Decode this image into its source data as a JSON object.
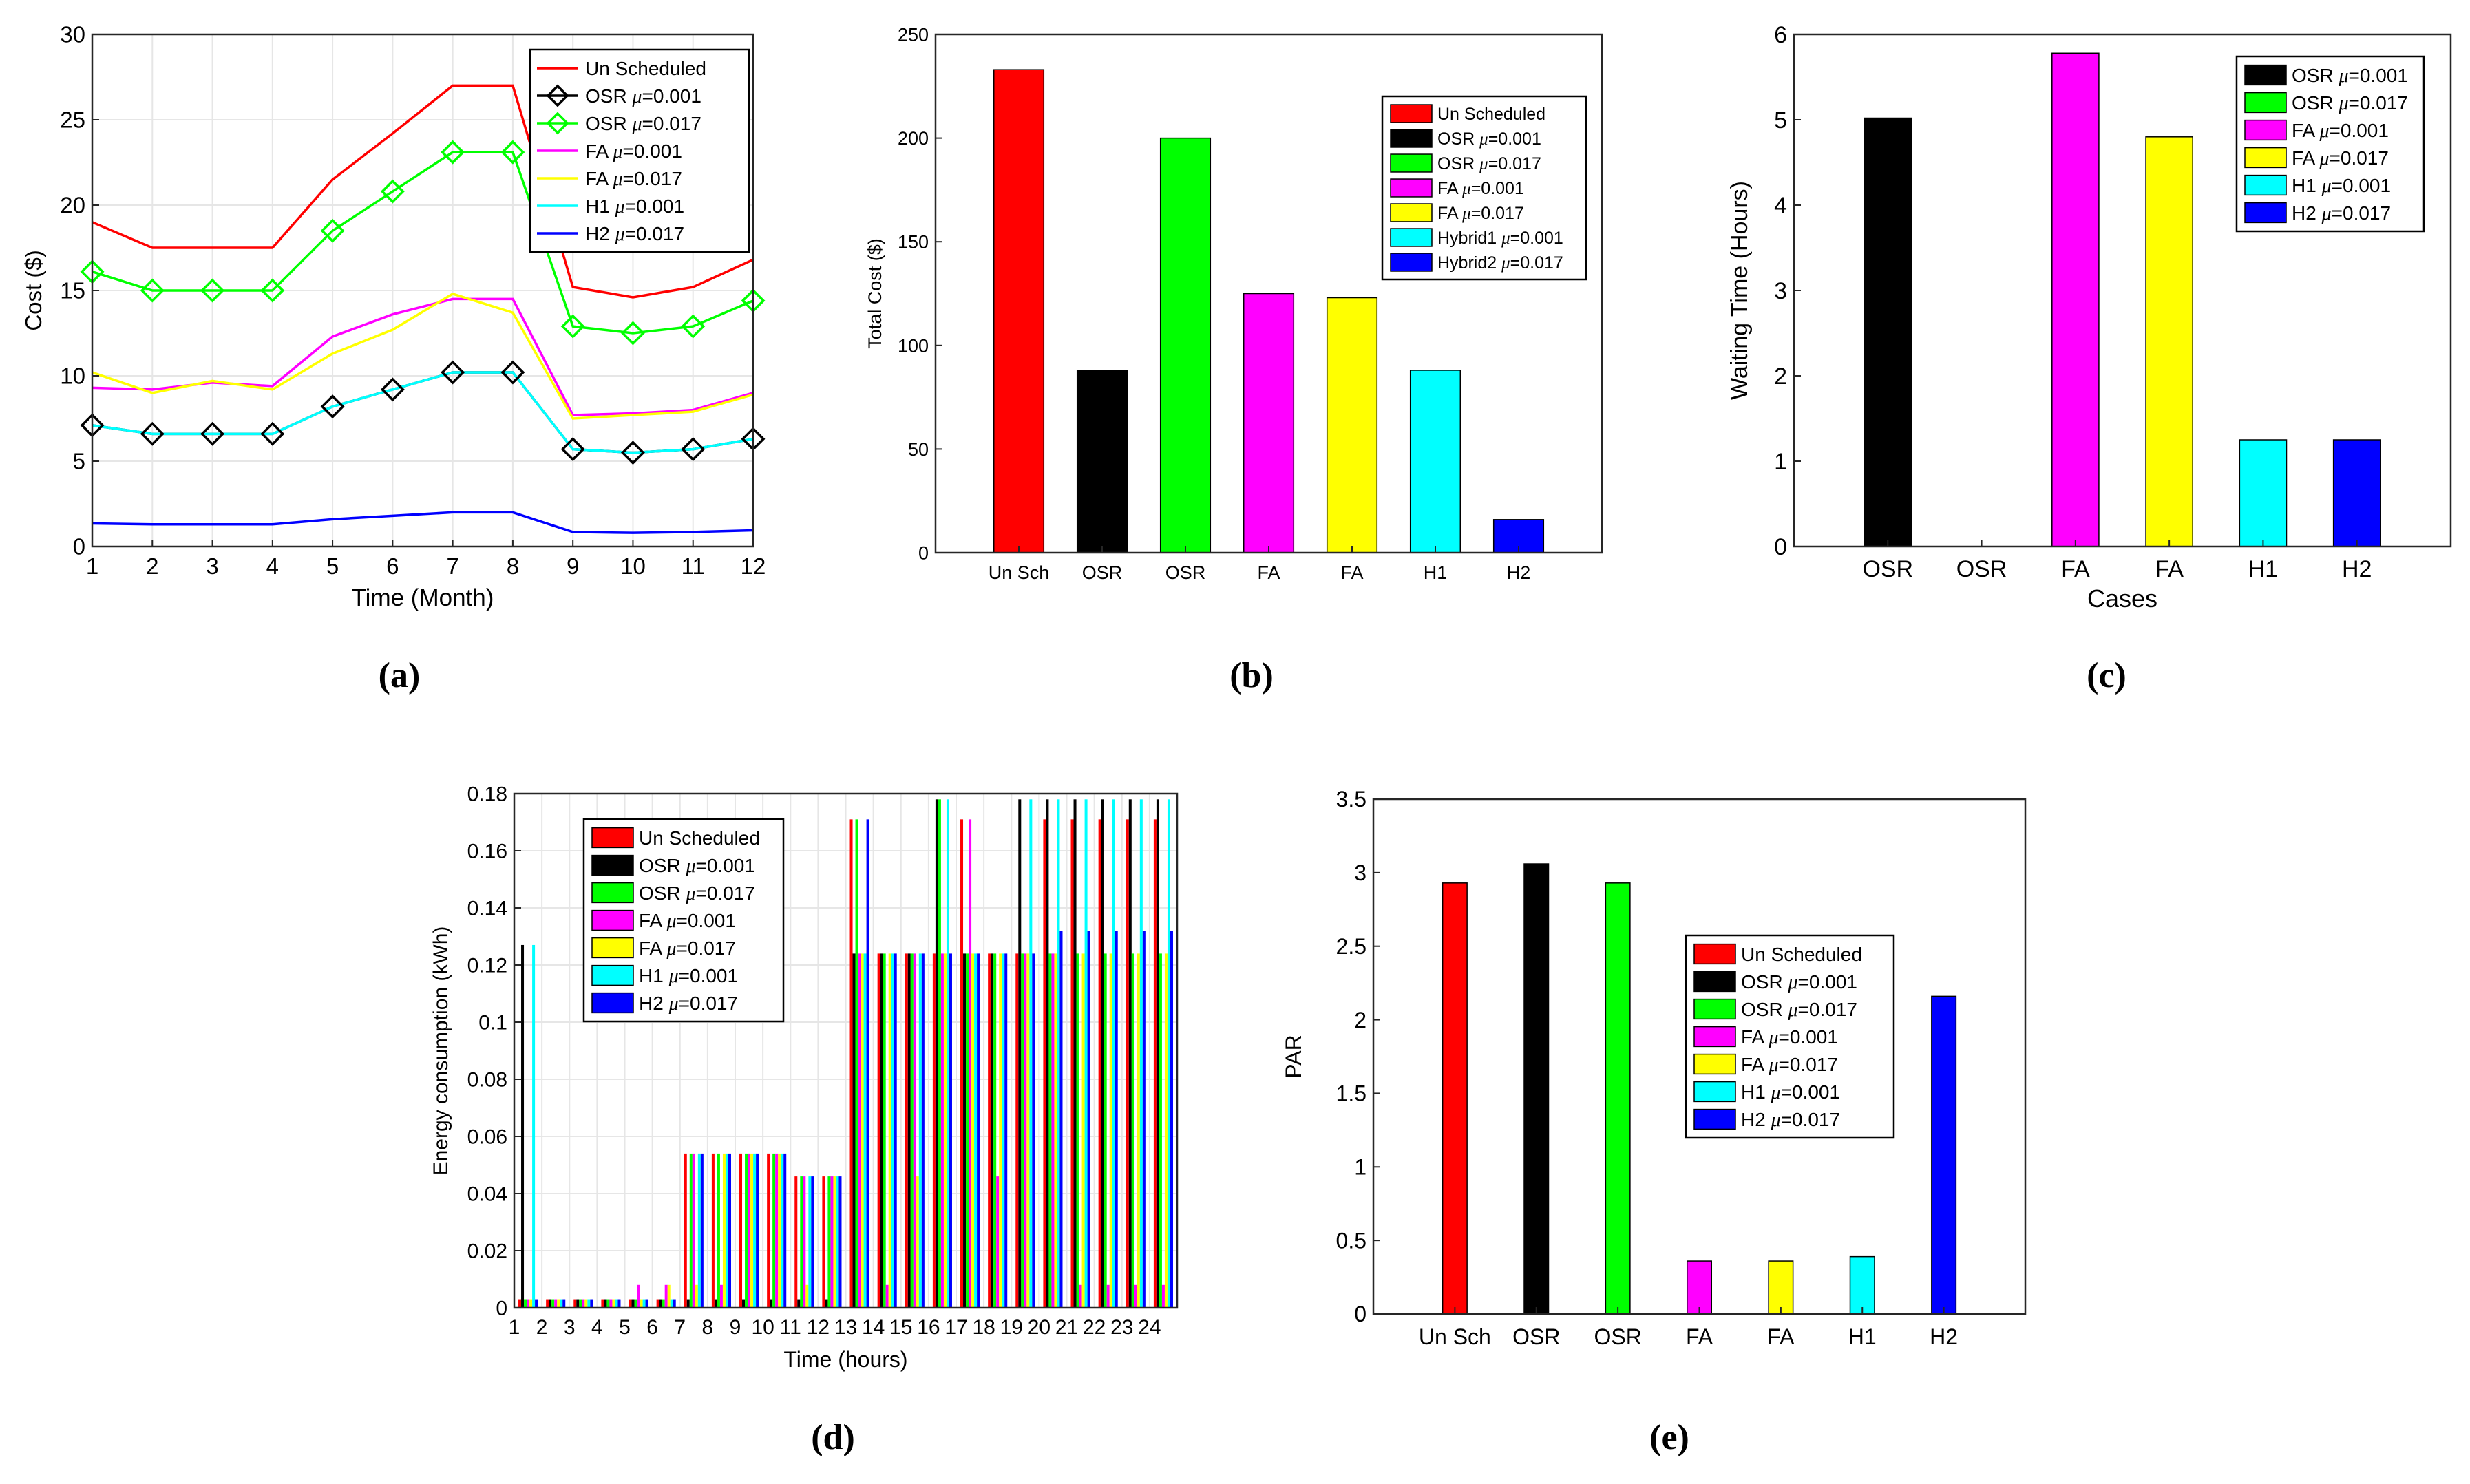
{
  "colors": {
    "red": "#ff0000",
    "black": "#000000",
    "green": "#00ff00",
    "magenta": "#ff00ff",
    "yellow": "#ffff00",
    "cyan": "#00ffff",
    "blue": "#0000ff",
    "grid": "#e6e6e6"
  },
  "chart_data": [
    {
      "id": "a",
      "type": "line",
      "panel_label": "(a)",
      "xlabel": "Time (Month)",
      "ylabel": "Cost ($)",
      "xlim": [
        1,
        12
      ],
      "ylim": [
        0,
        30
      ],
      "xticks": [
        1,
        2,
        3,
        4,
        5,
        6,
        7,
        8,
        9,
        10,
        11,
        12
      ],
      "yticks": [
        0,
        5,
        10,
        15,
        20,
        25,
        30
      ],
      "grid": true,
      "legend_position": "top-right",
      "series": [
        {
          "name": "Un Scheduled",
          "color": "#ff0000",
          "marker": "none",
          "legend": [
            "Un Scheduled"
          ],
          "values": [
            19,
            17.5,
            17.5,
            17.5,
            21.5,
            24.2,
            27,
            27,
            15.2,
            14.6,
            15.2,
            16.8
          ]
        },
        {
          "name": "OSR μ=0.001",
          "color": "#000000",
          "marker": "diamond",
          "legend": [
            "OSR ",
            "μ",
            "=0.001"
          ],
          "values": [
            7.1,
            6.6,
            6.6,
            6.6,
            8.2,
            9.2,
            10.2,
            10.2,
            5.7,
            5.5,
            5.7,
            6.3
          ]
        },
        {
          "name": "OSR μ=0.017",
          "color": "#00ff00",
          "marker": "diamond",
          "legend": [
            "OSR ",
            "μ",
            "=0.017"
          ],
          "values": [
            16.1,
            15.0,
            15.0,
            15.0,
            18.5,
            20.8,
            23.1,
            23.1,
            12.9,
            12.5,
            12.9,
            14.4
          ]
        },
        {
          "name": "FA μ=0.001",
          "color": "#ff00ff",
          "marker": "none",
          "legend": [
            "FA ",
            "μ",
            "=0.001"
          ],
          "values": [
            9.3,
            9.2,
            9.6,
            9.4,
            12.3,
            13.6,
            14.5,
            14.5,
            7.7,
            7.8,
            8.0,
            9.0
          ]
        },
        {
          "name": "FA μ=0.017",
          "color": "#ffff00",
          "marker": "none",
          "legend": [
            "FA ",
            "μ",
            "=0.017"
          ],
          "values": [
            10.2,
            9.0,
            9.7,
            9.2,
            11.3,
            12.7,
            14.8,
            13.7,
            7.5,
            7.7,
            7.9,
            8.9
          ]
        },
        {
          "name": "H1 μ=0.001",
          "color": "#00ffff",
          "marker": "none",
          "legend": [
            "H1 ",
            "μ",
            "=0.001"
          ],
          "values": [
            7.1,
            6.6,
            6.6,
            6.6,
            8.2,
            9.2,
            10.2,
            10.2,
            5.7,
            5.5,
            5.7,
            6.3
          ]
        },
        {
          "name": "H2 μ=0.017",
          "color": "#0000ff",
          "marker": "none",
          "legend": [
            "H2 ",
            "μ",
            "=0.017"
          ],
          "values": [
            1.35,
            1.3,
            1.3,
            1.3,
            1.6,
            1.8,
            2.0,
            2.0,
            0.85,
            0.8,
            0.85,
            0.95
          ]
        }
      ]
    },
    {
      "id": "b",
      "type": "bar",
      "panel_label": "(b)",
      "xlabel": "",
      "ylabel": "Total Cost ($)",
      "ylim": [
        0,
        250
      ],
      "yticks": [
        0,
        50,
        100,
        150,
        200,
        250
      ],
      "grid": false,
      "legend_position": "top-right",
      "categories": [
        "Un Sch",
        "OSR",
        "OSR",
        "FA",
        "FA",
        "H1",
        "H2"
      ],
      "values": [
        233,
        88,
        200,
        125,
        123,
        88,
        16
      ],
      "colors": [
        "#ff0000",
        "#000000",
        "#00ff00",
        "#ff00ff",
        "#ffff00",
        "#00ffff",
        "#0000ff"
      ],
      "legend": [
        [
          "Un Scheduled"
        ],
        [
          "OSR ",
          "μ",
          "=0.001"
        ],
        [
          "OSR ",
          "μ",
          "=0.017"
        ],
        [
          "FA ",
          "μ",
          "=0.001"
        ],
        [
          "FA ",
          "μ",
          "=0.017"
        ],
        [
          "Hybrid1 ",
          "μ",
          "=0.001"
        ],
        [
          "Hybrid2 ",
          "μ",
          "=0.017"
        ]
      ]
    },
    {
      "id": "c",
      "type": "bar",
      "panel_label": "(c)",
      "xlabel": "Cases",
      "ylabel": "Waiting Time (Hours)",
      "ylim": [
        0,
        6
      ],
      "yticks": [
        0,
        1,
        2,
        3,
        4,
        5,
        6
      ],
      "grid": false,
      "legend_position": "top-right",
      "categories": [
        "OSR",
        "OSR",
        "FA",
        "FA",
        "H1",
        "H2"
      ],
      "values": [
        5.02,
        0,
        5.78,
        4.8,
        1.25,
        1.25
      ],
      "colors": [
        "#000000",
        "#00ff00",
        "#ff00ff",
        "#ffff00",
        "#00ffff",
        "#0000ff"
      ],
      "legend": [
        [
          "OSR ",
          "μ",
          "=0.001"
        ],
        [
          "OSR ",
          "μ",
          "=0.017"
        ],
        [
          "FA ",
          "μ",
          "=0.001"
        ],
        [
          "FA ",
          "μ",
          "=0.017"
        ],
        [
          "H1 ",
          "μ",
          "=0.001"
        ],
        [
          "H2 ",
          "μ",
          "=0.017"
        ]
      ]
    },
    {
      "id": "d",
      "type": "bar",
      "panel_label": "(d)",
      "xlabel": "Time (hours)",
      "ylabel": "Energy consumption (kWh)",
      "ylim": [
        0,
        0.18
      ],
      "yticks": [
        0,
        0.02,
        0.04,
        0.06,
        0.08,
        0.1,
        0.12,
        0.14,
        0.16,
        0.18
      ],
      "ytick_labels": [
        "0",
        "0.02",
        "0.04",
        "0.06",
        "0.08",
        "0.1",
        "0.12",
        "0.14",
        "0.16",
        "0.18"
      ],
      "grid": true,
      "legend_position": "top-left",
      "categories": [
        "1",
        "2",
        "3",
        "4",
        "5",
        "6",
        "7",
        "8",
        "9",
        "10",
        "11",
        "12",
        "13",
        "14",
        "15",
        "16",
        "17",
        "18",
        "19",
        "20",
        "21",
        "22",
        "23",
        "24"
      ],
      "series": [
        {
          "name": "Un Scheduled",
          "color": "#ff0000",
          "legend": [
            "Un Scheduled"
          ],
          "values": [
            0.003,
            0.003,
            0.003,
            0.003,
            0.003,
            0.003,
            0.054,
            0.054,
            0.054,
            0.054,
            0.046,
            0.046,
            0.171,
            0.124,
            0.124,
            0.124,
            0.171,
            0.124,
            0.124,
            0.171,
            0.171,
            0.171,
            0.171,
            0.171
          ]
        },
        {
          "name": "OSR μ=0.001",
          "color": "#000000",
          "legend": [
            "OSR ",
            "μ",
            "=0.001"
          ],
          "values": [
            0.127,
            0.003,
            0.003,
            0.003,
            0.003,
            0.003,
            0.003,
            0.003,
            0.003,
            0.003,
            0.003,
            0.003,
            0.124,
            0.124,
            0.124,
            0.178,
            0.124,
            0.124,
            0.178,
            0.178,
            0.178,
            0.178,
            0.178,
            0.178
          ]
        },
        {
          "name": "OSR μ=0.017",
          "color": "#00ff00",
          "legend": [
            "OSR ",
            "μ",
            "=0.017"
          ],
          "values": [
            0.003,
            0.003,
            0.003,
            0.003,
            0.003,
            0.003,
            0.054,
            0.054,
            0.054,
            0.054,
            0.046,
            0.046,
            0.171,
            0.124,
            0.124,
            0.178,
            0.124,
            0.124,
            0.124,
            0.124,
            0.124,
            0.124,
            0.124,
            0.124
          ]
        },
        {
          "name": "FA μ=0.001",
          "color": "#ff00ff",
          "legend": [
            "FA ",
            "μ",
            "=0.001"
          ],
          "values": [
            0.003,
            0.003,
            0.003,
            0.003,
            0.008,
            0.008,
            0.054,
            0.008,
            0.054,
            0.054,
            0.046,
            0.046,
            0.124,
            0.008,
            0.124,
            0.124,
            0.171,
            0.046,
            0.124,
            0.124,
            0.008,
            0.008,
            0.008,
            0.008
          ]
        },
        {
          "name": "FA μ=0.017",
          "color": "#ffff00",
          "legend": [
            "FA ",
            "μ",
            "=0.017"
          ],
          "values": [
            0.003,
            0.003,
            0.003,
            0.003,
            0.003,
            0.008,
            0.008,
            0.054,
            0.054,
            0.054,
            0.008,
            0.046,
            0.124,
            0.124,
            0.046,
            0.124,
            0.124,
            0.124,
            0.124,
            0.124,
            0.124,
            0.124,
            0.124,
            0.124
          ]
        },
        {
          "name": "H1 μ=0.001",
          "color": "#00ffff",
          "legend": [
            "H1 ",
            "μ",
            "=0.001"
          ],
          "values": [
            0.127,
            0.003,
            0.003,
            0.003,
            0.003,
            0.003,
            0.054,
            0.054,
            0.054,
            0.054,
            0.046,
            0.046,
            0.124,
            0.124,
            0.124,
            0.178,
            0.124,
            0.124,
            0.178,
            0.178,
            0.178,
            0.178,
            0.178,
            0.178
          ]
        },
        {
          "name": "H2 μ=0.017",
          "color": "#0000ff",
          "legend": [
            "H2 ",
            "μ",
            "=0.017"
          ],
          "values": [
            0.003,
            0.003,
            0.003,
            0.003,
            0.003,
            0.003,
            0.054,
            0.054,
            0.054,
            0.054,
            0.046,
            0.046,
            0.171,
            0.124,
            0.124,
            0.124,
            0.124,
            0.124,
            0.124,
            0.132,
            0.132,
            0.132,
            0.132,
            0.132
          ]
        }
      ]
    },
    {
      "id": "e",
      "type": "bar",
      "panel_label": "(e)",
      "xlabel": "",
      "ylabel": "PAR",
      "ylim": [
        0,
        3.5
      ],
      "yticks": [
        0,
        0.5,
        1,
        1.5,
        2,
        2.5,
        3,
        3.5
      ],
      "grid": false,
      "legend_position": "center-right",
      "categories": [
        "Un Sch",
        "OSR",
        "OSR",
        "FA",
        "FA",
        "H1",
        "H2"
      ],
      "values": [
        2.93,
        3.06,
        2.93,
        0.36,
        0.36,
        0.39,
        2.16
      ],
      "colors": [
        "#ff0000",
        "#000000",
        "#00ff00",
        "#ff00ff",
        "#ffff00",
        "#00ffff",
        "#0000ff"
      ],
      "legend": [
        [
          "Un Scheduled"
        ],
        [
          "OSR ",
          "μ",
          "=0.001"
        ],
        [
          "OSR ",
          "μ",
          "=0.017"
        ],
        [
          "FA ",
          "μ",
          "=0.001"
        ],
        [
          "FA ",
          "μ",
          "=0.017"
        ],
        [
          "H1 ",
          "μ",
          "=0.001"
        ],
        [
          "H2 ",
          "μ",
          "=0.017"
        ]
      ]
    }
  ]
}
